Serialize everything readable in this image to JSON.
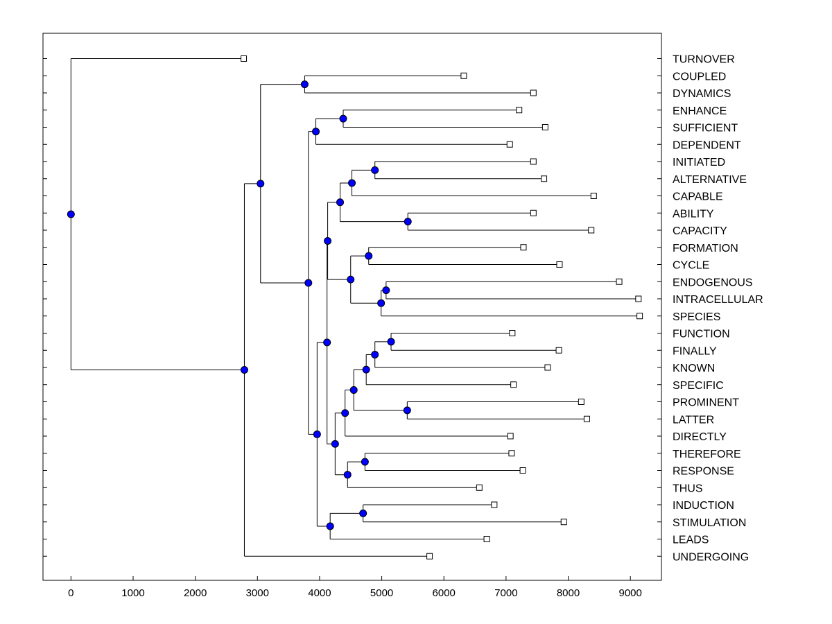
{
  "chart_data": {
    "type": "dendrogram",
    "title": "",
    "xlabel": "",
    "ylabel": "",
    "xlim": [
      -450,
      9500
    ],
    "xticks": [
      0,
      1000,
      2000,
      3000,
      4000,
      5000,
      6000,
      7000,
      8000,
      9000
    ],
    "xtick_labels": [
      "0",
      "1000",
      "2000",
      "3000",
      "4000",
      "5000",
      "6000",
      "7000",
      "8000",
      "9000"
    ],
    "grid": false,
    "node_color": "#0000ff",
    "leaf_marker_color": "#ffffff",
    "leaves": [
      {
        "label": "TURNOVER",
        "value": 2780
      },
      {
        "label": "COUPLED",
        "value": 6320
      },
      {
        "label": "DYNAMICS",
        "value": 7440
      },
      {
        "label": "ENHANCE",
        "value": 7210
      },
      {
        "label": "SUFFICIENT",
        "value": 7630
      },
      {
        "label": "DEPENDENT",
        "value": 7060
      },
      {
        "label": "INITIATED",
        "value": 7440
      },
      {
        "label": "ALTERNATIVE",
        "value": 7610
      },
      {
        "label": "CAPABLE",
        "value": 8410
      },
      {
        "label": "ABILITY",
        "value": 7440
      },
      {
        "label": "CAPACITY",
        "value": 8370
      },
      {
        "label": "FORMATION",
        "value": 7280
      },
      {
        "label": "CYCLE",
        "value": 7860
      },
      {
        "label": "ENDOGENOUS",
        "value": 8820
      },
      {
        "label": "INTRACELLULAR",
        "value": 9130
      },
      {
        "label": "SPECIES",
        "value": 9150
      },
      {
        "label": "FUNCTION",
        "value": 7100
      },
      {
        "label": "FINALLY",
        "value": 7850
      },
      {
        "label": "KNOWN",
        "value": 7670
      },
      {
        "label": "SPECIFIC",
        "value": 7120
      },
      {
        "label": "PROMINENT",
        "value": 8210
      },
      {
        "label": "LATTER",
        "value": 8300
      },
      {
        "label": "DIRECTLY",
        "value": 7070
      },
      {
        "label": "THEREFORE",
        "value": 7090
      },
      {
        "label": "RESPONSE",
        "value": 7270
      },
      {
        "label": "THUS",
        "value": 6570
      },
      {
        "label": "INDUCTION",
        "value": 6810
      },
      {
        "label": "STIMULATION",
        "value": 7930
      },
      {
        "label": "LEADS",
        "value": 6690
      },
      {
        "label": "UNDERGOING",
        "value": 5770
      }
    ],
    "merges": [
      {
        "id": "n1",
        "value": 0,
        "children": [
          "TURNOVER",
          "n2"
        ]
      },
      {
        "id": "n2",
        "value": 2790,
        "children": [
          "n3",
          "UNDERGOING"
        ]
      },
      {
        "id": "n3",
        "value": 3050,
        "children": [
          "n4",
          "n5"
        ]
      },
      {
        "id": "n4",
        "value": 3760,
        "children": [
          "COUPLED",
          "DYNAMICS"
        ]
      },
      {
        "id": "n5",
        "value": 3820,
        "children": [
          "n6",
          "n8"
        ]
      },
      {
        "id": "n6",
        "value": 3940,
        "children": [
          "n7",
          "DEPENDENT"
        ]
      },
      {
        "id": "n7",
        "value": 4380,
        "children": [
          "ENHANCE",
          "SUFFICIENT"
        ]
      },
      {
        "id": "n8",
        "value": 3960,
        "children": [
          "n9",
          "n26"
        ]
      },
      {
        "id": "n9",
        "value": 4120,
        "children": [
          "n10",
          "n17"
        ]
      },
      {
        "id": "n10",
        "value": 4130,
        "children": [
          "n11",
          "n15"
        ]
      },
      {
        "id": "n11",
        "value": 4330,
        "children": [
          "n12",
          "n14"
        ]
      },
      {
        "id": "n12",
        "value": 4520,
        "children": [
          "n13",
          "CAPABLE"
        ]
      },
      {
        "id": "n13",
        "value": 4890,
        "children": [
          "INITIATED",
          "ALTERNATIVE"
        ]
      },
      {
        "id": "n14",
        "value": 5420,
        "children": [
          "ABILITY",
          "CAPACITY"
        ]
      },
      {
        "id": "n15",
        "value": 4500,
        "children": [
          "n16",
          "n18"
        ]
      },
      {
        "id": "n16",
        "value": 4790,
        "children": [
          "FORMATION",
          "CYCLE"
        ]
      },
      {
        "id": "n18",
        "value": 4990,
        "children": [
          "n19",
          "SPECIES"
        ]
      },
      {
        "id": "n19",
        "value": 5070,
        "children": [
          "ENDOGENOUS",
          "INTRACELLULAR"
        ]
      },
      {
        "id": "n17",
        "value": 4250,
        "children": [
          "n20",
          "n24"
        ]
      },
      {
        "id": "n20",
        "value": 4410,
        "children": [
          "n21",
          "DIRECTLY"
        ]
      },
      {
        "id": "n21",
        "value": 4550,
        "children": [
          "n22",
          "n23"
        ]
      },
      {
        "id": "n22",
        "value": 4750,
        "children": [
          "n25",
          "SPECIFIC"
        ]
      },
      {
        "id": "n25",
        "value": 4890,
        "children": [
          "n27",
          "KNOWN"
        ]
      },
      {
        "id": "n27",
        "value": 5150,
        "children": [
          "FUNCTION",
          "FINALLY"
        ]
      },
      {
        "id": "n23",
        "value": 5410,
        "children": [
          "PROMINENT",
          "LATTER"
        ]
      },
      {
        "id": "n24",
        "value": 4450,
        "children": [
          "n28",
          "THUS"
        ]
      },
      {
        "id": "n28",
        "value": 4730,
        "children": [
          "THEREFORE",
          "RESPONSE"
        ]
      },
      {
        "id": "n26",
        "value": 4170,
        "children": [
          "n29",
          "LEADS"
        ]
      },
      {
        "id": "n29",
        "value": 4700,
        "children": [
          "INDUCTION",
          "STIMULATION"
        ]
      }
    ]
  }
}
